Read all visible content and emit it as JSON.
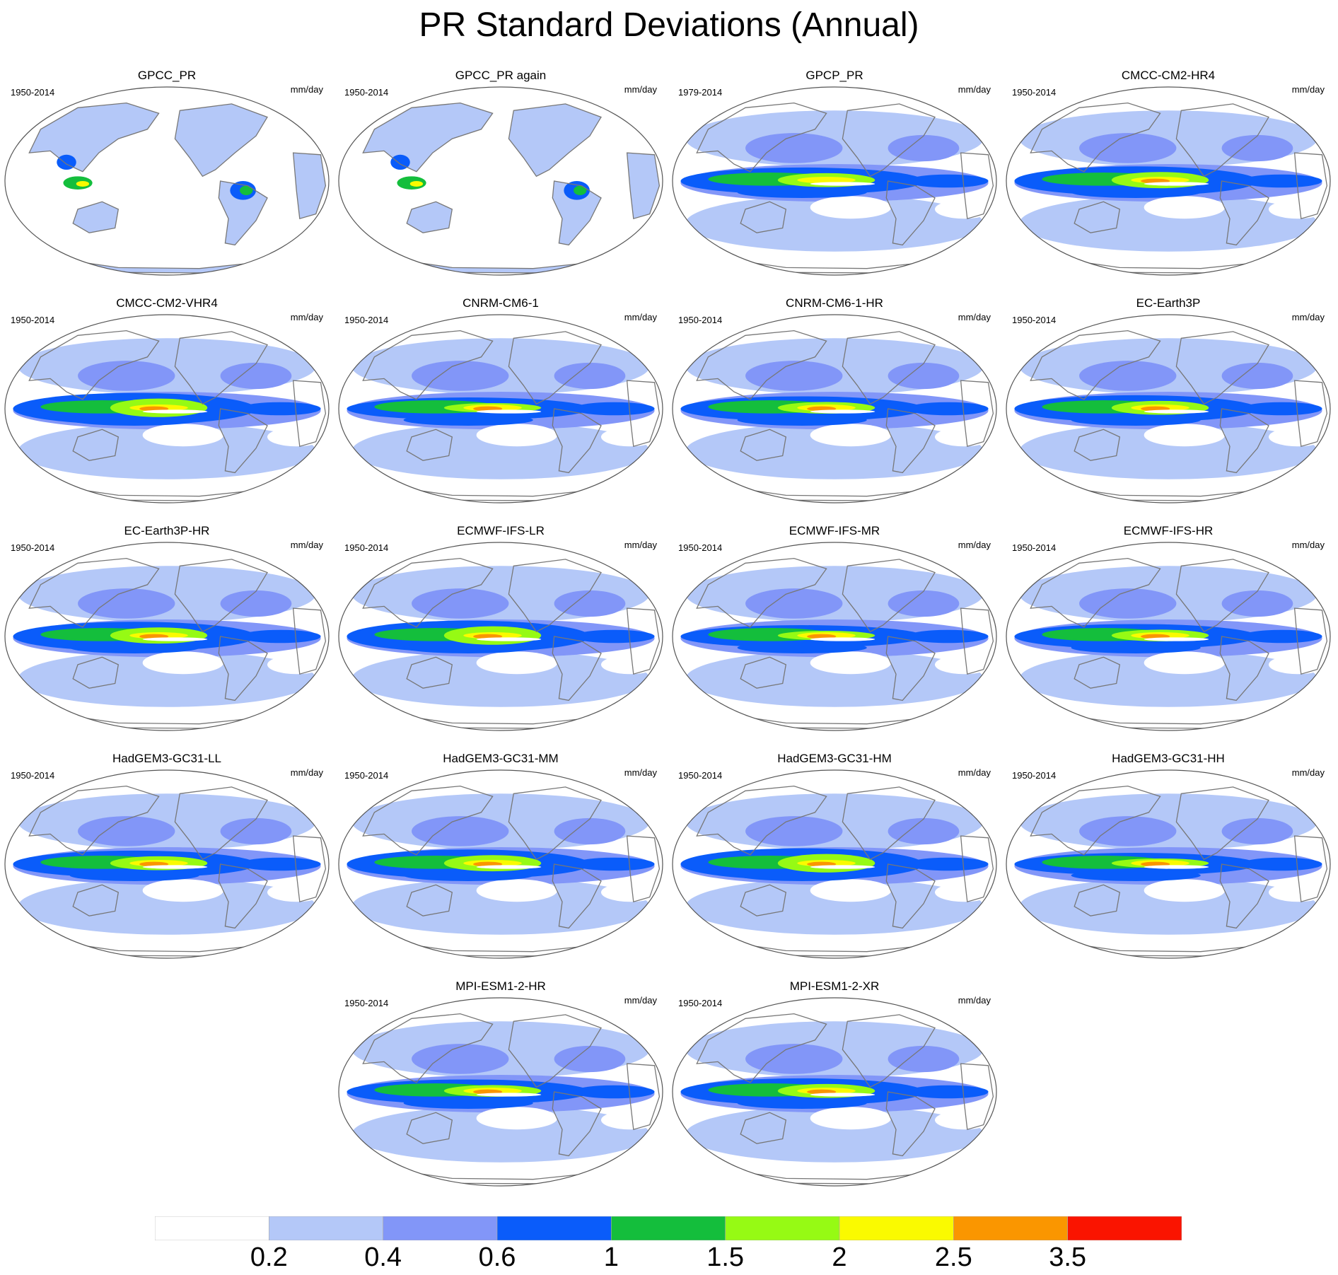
{
  "title": "PR Standard Deviations (Annual)",
  "units": "mm/day",
  "panels": [
    {
      "name": "GPCC_PR",
      "period": "1950-2014",
      "kind": "obs-land"
    },
    {
      "name": "GPCC_PR again",
      "period": "1950-2014",
      "kind": "obs-land"
    },
    {
      "name": "GPCP_PR",
      "period": "1979-2014",
      "kind": "obs"
    },
    {
      "name": "CMCC-CM2-HR4",
      "period": "1950-2014",
      "kind": "model"
    },
    {
      "name": "CMCC-CM2-VHR4",
      "period": "1950-2014",
      "kind": "model"
    },
    {
      "name": "CNRM-CM6-1",
      "period": "1950-2014",
      "kind": "model"
    },
    {
      "name": "CNRM-CM6-1-HR",
      "period": "1950-2014",
      "kind": "model"
    },
    {
      "name": "EC-Earth3P",
      "period": "1950-2014",
      "kind": "model"
    },
    {
      "name": "EC-Earth3P-HR",
      "period": "1950-2014",
      "kind": "model"
    },
    {
      "name": "ECMWF-IFS-LR",
      "period": "1950-2014",
      "kind": "model"
    },
    {
      "name": "ECMWF-IFS-MR",
      "period": "1950-2014",
      "kind": "model"
    },
    {
      "name": "ECMWF-IFS-HR",
      "period": "1950-2014",
      "kind": "model"
    },
    {
      "name": "HadGEM3-GC31-LL",
      "period": "1950-2014",
      "kind": "model"
    },
    {
      "name": "HadGEM3-GC31-MM",
      "period": "1950-2014",
      "kind": "model"
    },
    {
      "name": "HadGEM3-GC31-HM",
      "period": "1950-2014",
      "kind": "model"
    },
    {
      "name": "HadGEM3-GC31-HH",
      "period": "1950-2014",
      "kind": "model"
    },
    {
      "name": "MPI-ESM1-2-HR",
      "period": "1950-2014",
      "kind": "model"
    },
    {
      "name": "MPI-ESM1-2-XR",
      "period": "1950-2014",
      "kind": "model"
    }
  ],
  "colorbar": {
    "levels": [
      "0.2",
      "0.4",
      "0.6",
      "1",
      "1.5",
      "2",
      "2.5",
      "3.5"
    ],
    "colors": [
      "#ffffff",
      "#b4c8f8",
      "#8296f8",
      "#0a5cfa",
      "#14be3c",
      "#96fa14",
      "#fafa00",
      "#fa9600",
      "#fa1400"
    ]
  },
  "colors": {
    "coastline": "#777777",
    "frame": "#555555"
  }
}
